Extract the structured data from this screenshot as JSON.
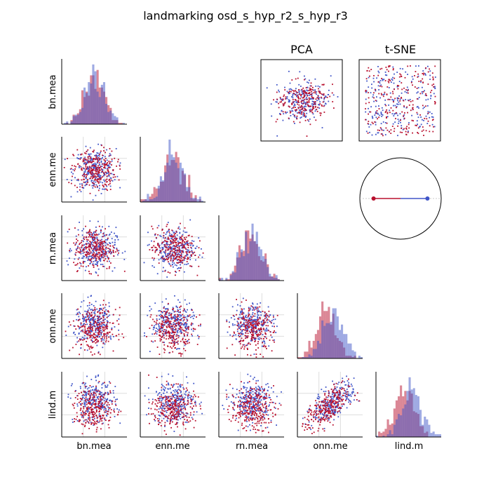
{
  "title": "landmarking osd_s_hyp_r2_s_hyp_r3",
  "colors": {
    "class_a": "#4055c8",
    "class_b": "#b8102e",
    "grid": "#dddddd",
    "axis": "#000000"
  },
  "chart_data": {
    "type": "scatter",
    "features": [
      "bn.mea",
      "enn.me",
      "rn.mea",
      "onn.me",
      "lind.m"
    ],
    "legend": "none",
    "grid": true,
    "panels": {
      "matrix": "lower-triangle scatter matrix with per-feature overlaid histograms on the diagonal",
      "projections": [
        {
          "title": "PCA",
          "type": "scatter"
        },
        {
          "title": "t-SNE",
          "type": "scatter"
        }
      ],
      "circle": {
        "type": "class-centroid line on unit circle",
        "points": [
          [
            -0.8,
            0
          ],
          [
            0.8,
            0
          ]
        ]
      }
    },
    "classes": [
      {
        "color": "#4055c8",
        "points_per_panel": 260
      },
      {
        "color": "#b8102e",
        "points_per_panel": 260
      }
    ],
    "pair_correlation": {
      "onn.me|lind.m": 0.6
    },
    "class_shift": {
      "onn.me": 0.6,
      "lind.m": 0.7
    }
  }
}
